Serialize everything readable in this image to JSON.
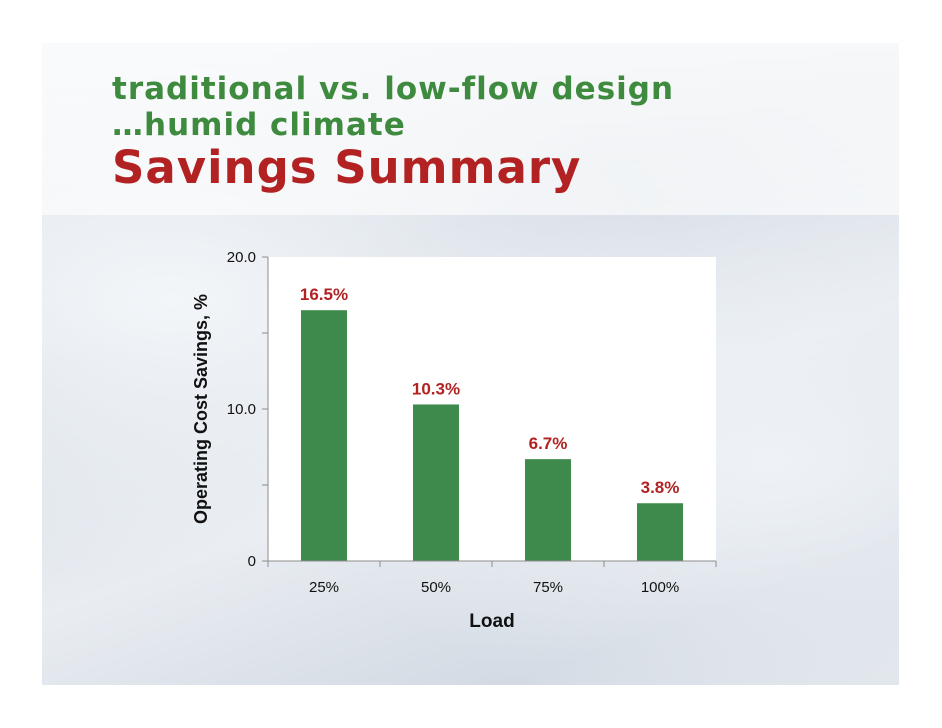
{
  "slide": {
    "title_line1": "traditional vs. low-flow design",
    "title_line2": "…humid climate",
    "title_line3": "Savings Summary"
  },
  "colors": {
    "title_green": "#3e8a3e",
    "title_red": "#b22222",
    "bar": "#3e8a4c",
    "data_label": "#b22222"
  },
  "chart_data": {
    "type": "bar",
    "categories": [
      "25%",
      "50%",
      "75%",
      "100%"
    ],
    "values": [
      16.5,
      10.3,
      6.7,
      3.8
    ],
    "data_labels": [
      "16.5%",
      "10.3%",
      "6.7%",
      "3.8%"
    ],
    "xlabel": "Load",
    "ylabel": "Operating Cost Savings, %",
    "ylim": [
      0,
      20
    ],
    "y_ticks": [
      0,
      5,
      10,
      15,
      20
    ],
    "y_tick_labels": [
      "0",
      "",
      "10.0",
      "",
      "20.0"
    ],
    "grid": false,
    "legend": "none"
  }
}
